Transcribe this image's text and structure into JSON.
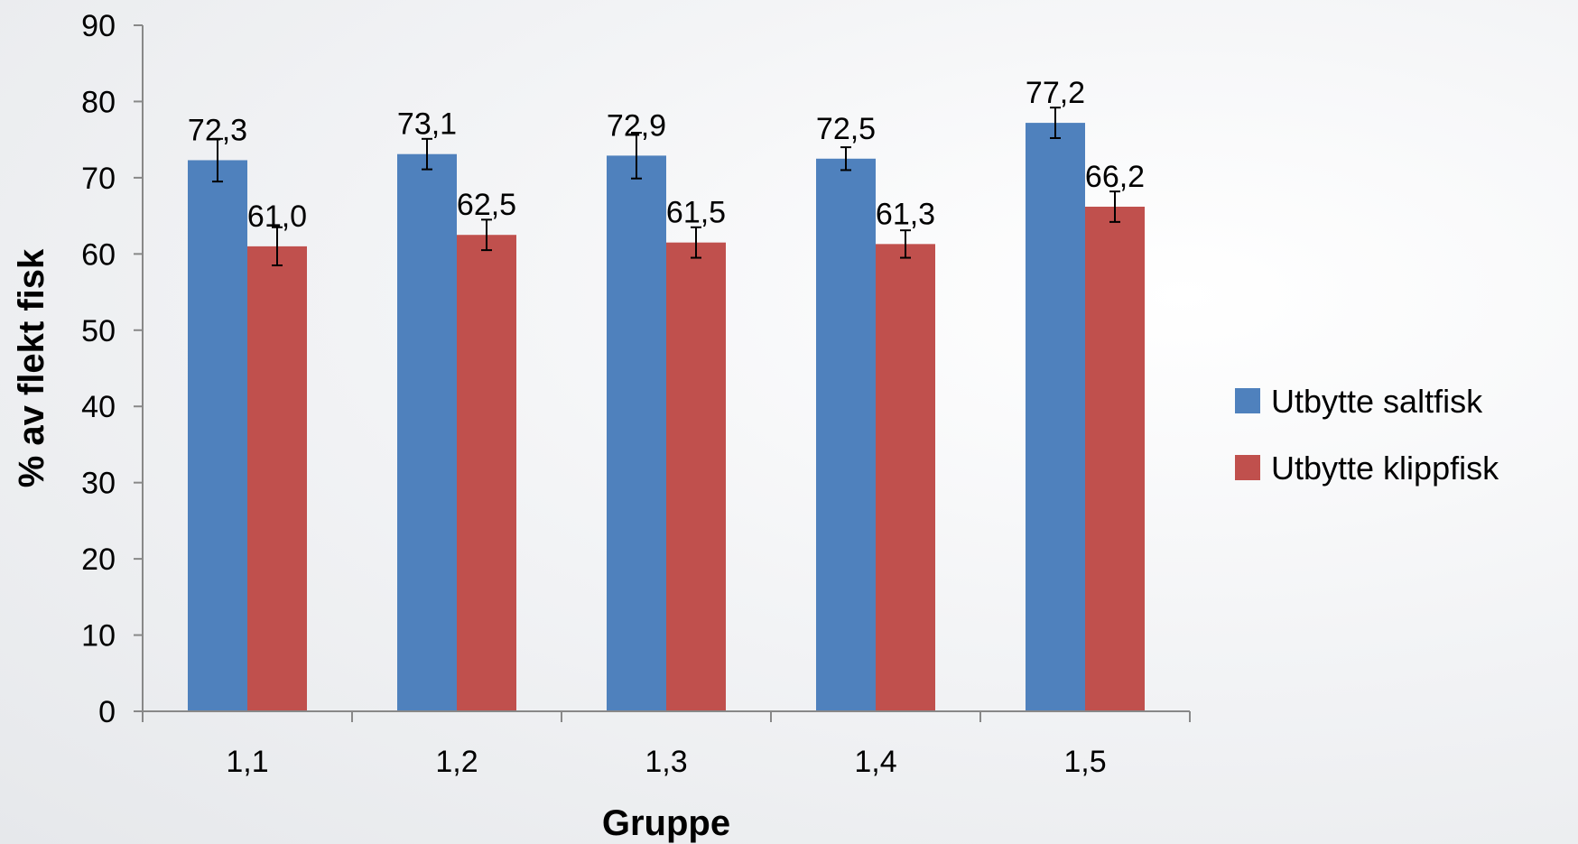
{
  "chart_data": {
    "type": "bar",
    "categories": [
      "1,1",
      "1,2",
      "1,3",
      "1,4",
      "1,5"
    ],
    "series": [
      {
        "name": "Utbytte saltfisk",
        "color": "#4F81BD",
        "values": [
          72.3,
          73.1,
          72.9,
          72.5,
          77.2
        ],
        "labels": [
          "72,3",
          "73,1",
          "72,9",
          "72,5",
          "77,2"
        ],
        "error": [
          2.8,
          2.0,
          3.0,
          1.5,
          2.0
        ]
      },
      {
        "name": "Utbytte klippfisk",
        "color": "#C0504D",
        "values": [
          61.0,
          62.5,
          61.5,
          61.3,
          66.2
        ],
        "labels": [
          "61,0",
          "62,5",
          "61,5",
          "61,3",
          "66,2"
        ],
        "error": [
          2.5,
          2.0,
          2.0,
          1.8,
          2.0
        ]
      }
    ],
    "xlabel": "Gruppe",
    "ylabel": "% av flekt fisk",
    "ylim": [
      0,
      90
    ],
    "yticks": [
      "0",
      "10",
      "20",
      "30",
      "40",
      "50",
      "60",
      "70",
      "80",
      "90"
    ],
    "grid": false,
    "legend_position": "right"
  }
}
